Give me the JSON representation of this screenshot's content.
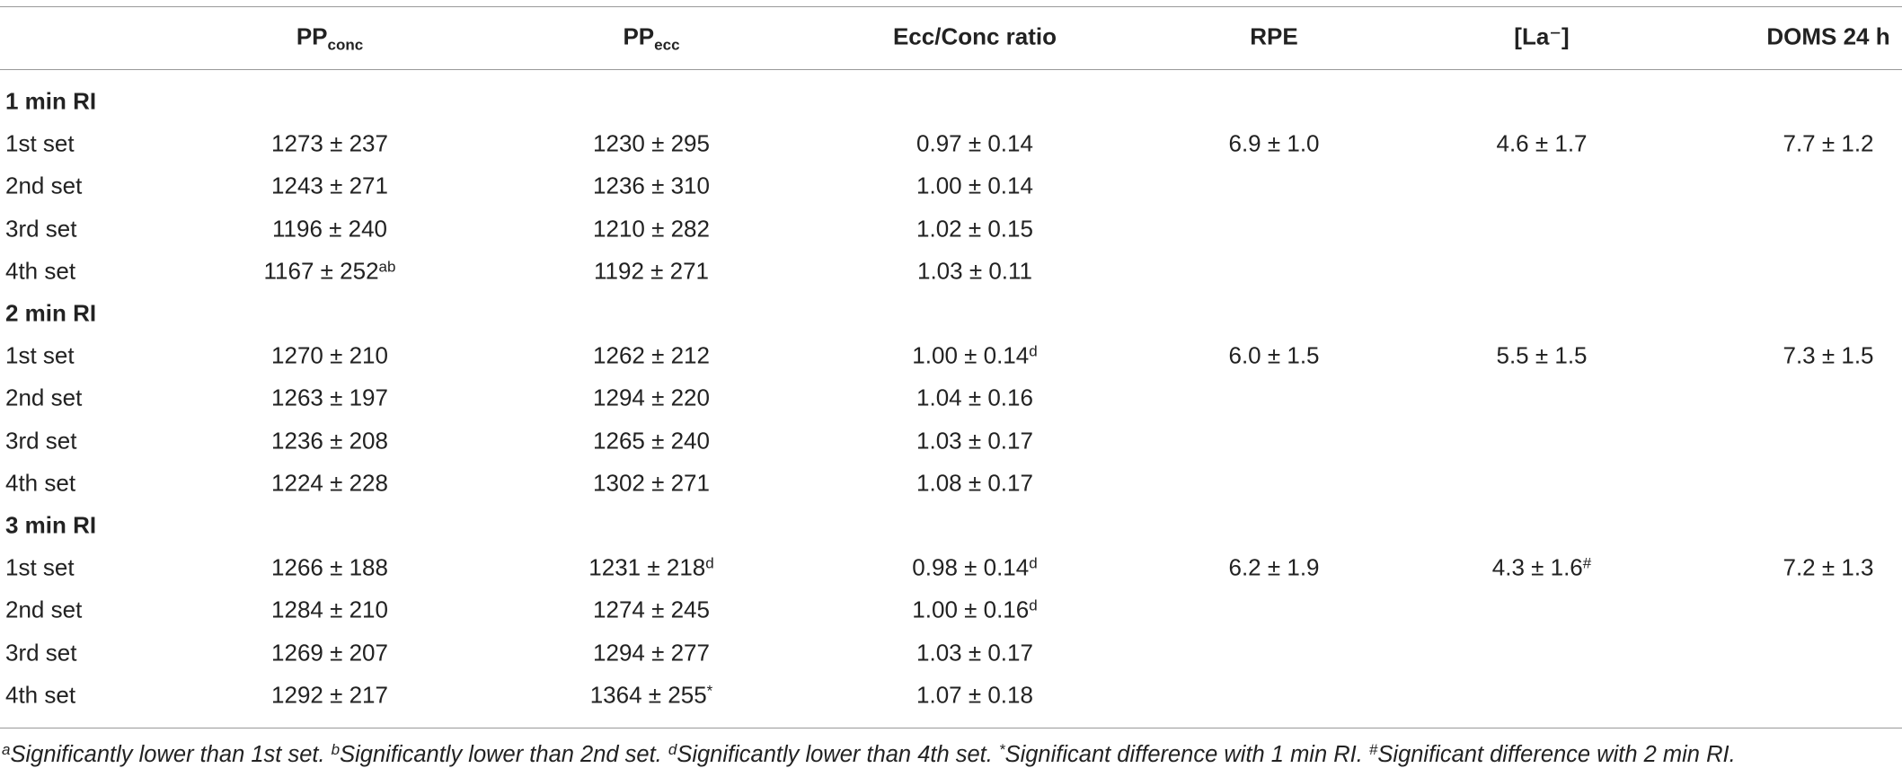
{
  "table": {
    "columns": [
      {
        "text": "PP",
        "sub": "conc"
      },
      {
        "text": "PP",
        "sub": "ecc"
      },
      {
        "text": "Ecc/Conc ratio"
      },
      {
        "text": "RPE"
      },
      {
        "text": "[La⁻]"
      },
      {
        "text": "DOMS 24 h"
      }
    ],
    "groups": [
      {
        "label": "1 min RI",
        "rows": [
          {
            "label": "1st set",
            "cells": [
              {
                "text": "1273 ± 237"
              },
              {
                "text": "1230 ± 295"
              },
              {
                "text": "0.97 ± 0.14"
              },
              {
                "text": "6.9 ± 1.0"
              },
              {
                "text": "4.6 ± 1.7"
              },
              {
                "text": "7.7 ± 1.2"
              }
            ]
          },
          {
            "label": "2nd set",
            "cells": [
              {
                "text": "1243 ± 271"
              },
              {
                "text": "1236 ± 310"
              },
              {
                "text": "1.00 ± 0.14"
              }
            ]
          },
          {
            "label": "3rd set",
            "cells": [
              {
                "text": "1196 ± 240"
              },
              {
                "text": "1210 ± 282"
              },
              {
                "text": "1.02 ± 0.15"
              }
            ]
          },
          {
            "label": "4th set",
            "cells": [
              {
                "text": "1167 ± 252",
                "sup": "ab"
              },
              {
                "text": "1192 ± 271"
              },
              {
                "text": "1.03 ± 0.11"
              }
            ]
          }
        ]
      },
      {
        "label": "2 min RI",
        "rows": [
          {
            "label": "1st set",
            "cells": [
              {
                "text": "1270 ± 210"
              },
              {
                "text": "1262 ± 212"
              },
              {
                "text": "1.00 ± 0.14",
                "sup": "d"
              },
              {
                "text": "6.0 ± 1.5"
              },
              {
                "text": "5.5 ± 1.5"
              },
              {
                "text": "7.3 ± 1.5"
              }
            ]
          },
          {
            "label": "2nd set",
            "cells": [
              {
                "text": "1263 ± 197"
              },
              {
                "text": "1294 ± 220"
              },
              {
                "text": "1.04 ± 0.16"
              }
            ]
          },
          {
            "label": "3rd set",
            "cells": [
              {
                "text": "1236 ± 208"
              },
              {
                "text": "1265 ± 240"
              },
              {
                "text": "1.03 ± 0.17"
              }
            ]
          },
          {
            "label": "4th set",
            "cells": [
              {
                "text": "1224 ± 228"
              },
              {
                "text": "1302 ± 271"
              },
              {
                "text": "1.08 ± 0.17"
              }
            ]
          }
        ]
      },
      {
        "label": "3 min RI",
        "rows": [
          {
            "label": "1st set",
            "cells": [
              {
                "text": "1266 ± 188"
              },
              {
                "text": "1231 ± 218",
                "sup": "d"
              },
              {
                "text": "0.98 ± 0.14",
                "sup": "d"
              },
              {
                "text": "6.2 ± 1.9"
              },
              {
                "text": "4.3 ± 1.6",
                "sup": "#"
              },
              {
                "text": "7.2 ± 1.3"
              }
            ]
          },
          {
            "label": "2nd set",
            "cells": [
              {
                "text": "1284 ± 210"
              },
              {
                "text": "1274 ± 245"
              },
              {
                "text": "1.00 ± 0.16",
                "sup": "d"
              }
            ]
          },
          {
            "label": "3rd set",
            "cells": [
              {
                "text": "1269 ± 207"
              },
              {
                "text": "1294 ± 277"
              },
              {
                "text": "1.03 ± 0.17"
              }
            ]
          },
          {
            "label": "4th set",
            "cells": [
              {
                "text": "1292 ± 217"
              },
              {
                "text": "1364 ± 255",
                "sup": "*"
              },
              {
                "text": "1.07 ± 0.18"
              }
            ]
          }
        ]
      }
    ]
  },
  "footnotes": [
    {
      "mark": "a",
      "text": "Significantly lower than 1st set."
    },
    {
      "mark": "b",
      "text": "Significantly lower than 2nd set."
    },
    {
      "mark": "d",
      "text": "Significantly lower than 4th set."
    },
    {
      "mark": "*",
      "text": "Significant difference with 1 min RI."
    },
    {
      "mark": "#",
      "text": "Significant difference with 2 min RI."
    }
  ]
}
